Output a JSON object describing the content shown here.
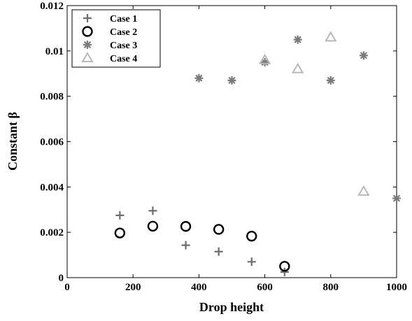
{
  "chart_data": {
    "type": "scatter",
    "title": "",
    "xlabel": "Drop height",
    "ylabel": "Constant β",
    "xlim": [
      0,
      1000
    ],
    "ylim": [
      0,
      0.012
    ],
    "xticks": [
      0,
      200,
      400,
      600,
      800,
      1000
    ],
    "yticks": [
      0,
      0.002,
      0.004,
      0.006,
      0.008,
      0.01,
      0.012
    ],
    "xtick_labels": [
      "0",
      "200",
      "400",
      "600",
      "800",
      "1000"
    ],
    "ytick_labels": [
      "0",
      "0.002",
      "0.004",
      "0.006",
      "0.008",
      "0.01",
      "0.012"
    ],
    "grid": false,
    "legend_position": "top-left",
    "series": [
      {
        "name": "Case 1",
        "marker": "plus",
        "color": "#6e6e6e",
        "points": [
          [
            160,
            0.00275
          ],
          [
            260,
            0.00295
          ],
          [
            360,
            0.00143
          ],
          [
            460,
            0.00115
          ],
          [
            560,
            0.0007
          ],
          [
            660,
            0.00025
          ]
        ]
      },
      {
        "name": "Case 2",
        "marker": "circle",
        "color": "#000000",
        "points": [
          [
            160,
            0.00197
          ],
          [
            260,
            0.00227
          ],
          [
            360,
            0.00226
          ],
          [
            460,
            0.00213
          ],
          [
            560,
            0.00183
          ],
          [
            660,
            0.0005
          ]
        ]
      },
      {
        "name": "Case 3",
        "marker": "asterisk",
        "color": "#7a7a7a",
        "points": [
          [
            400,
            0.0088
          ],
          [
            500,
            0.0087
          ],
          [
            600,
            0.0095
          ],
          [
            700,
            0.0105
          ],
          [
            800,
            0.0087
          ],
          [
            900,
            0.0098
          ],
          [
            1000,
            0.0035
          ]
        ]
      },
      {
        "name": "Case 4",
        "marker": "triangle",
        "color": "#b8b8b8",
        "points": [
          [
            600,
            0.0096
          ],
          [
            700,
            0.0092
          ],
          [
            800,
            0.0106
          ],
          [
            900,
            0.0038
          ]
        ]
      }
    ]
  }
}
